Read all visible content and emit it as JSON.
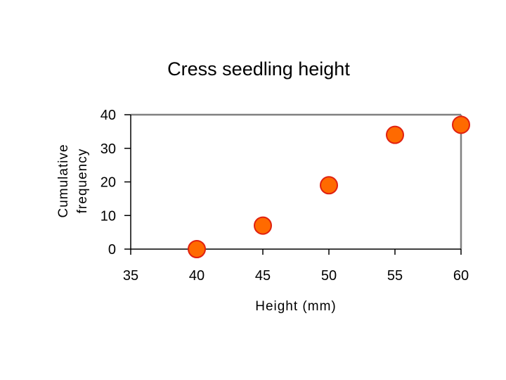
{
  "chart_data": {
    "type": "scatter",
    "title": "Cress seedling height",
    "xlabel": "Height (mm)",
    "ylabel_lines": [
      "Cumulative",
      "frequency"
    ],
    "xlim": [
      35,
      60
    ],
    "ylim": [
      0,
      40
    ],
    "xticks": [
      35,
      40,
      45,
      50,
      55,
      60
    ],
    "yticks": [
      0,
      10,
      20,
      30,
      40
    ],
    "grid": false,
    "points": [
      {
        "x": 40,
        "y": 0
      },
      {
        "x": 45,
        "y": 7
      },
      {
        "x": 50,
        "y": 19
      },
      {
        "x": 55,
        "y": 34
      },
      {
        "x": 60,
        "y": 37
      }
    ],
    "marker_fill": "#ff6a00",
    "marker_stroke": "#e02010",
    "frame_color": "#808080",
    "axis_color": "#000000"
  }
}
